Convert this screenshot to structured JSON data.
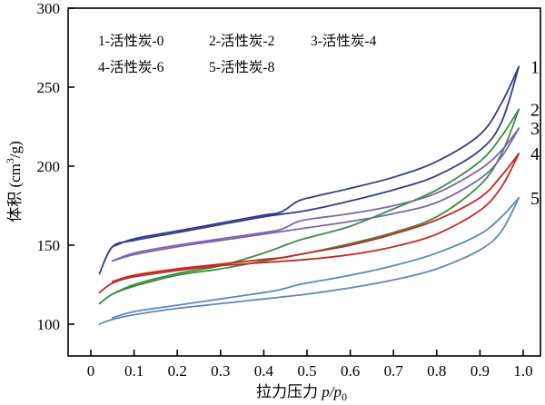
{
  "figure": {
    "background": "#ffffff",
    "axis_color": "#000000"
  },
  "chart_data": {
    "type": "line",
    "title": "",
    "xlabel": {
      "text": "拉力压力 ",
      "math": "p/p",
      "sub": "0"
    },
    "ylabel": {
      "pre": "体积 (cm",
      "sup": "3",
      "post": "/g)"
    },
    "xlim": [
      -0.052,
      1.04
    ],
    "ylim": [
      80,
      300
    ],
    "grid": false,
    "legend_position": "top-left-inside",
    "x_ticks": [
      "0",
      "0.1",
      "0.2",
      "0.3",
      "0.4",
      "0.5",
      "0.6",
      "0.7",
      "0.8",
      "0.9",
      "1.0"
    ],
    "x_tick_values": [
      0,
      0.1,
      0.2,
      0.3,
      0.4,
      0.5,
      0.6,
      0.7,
      0.8,
      0.9,
      1.0
    ],
    "y_ticks": [
      "100",
      "150",
      "200",
      "250",
      "300"
    ],
    "y_tick_values": [
      100,
      150,
      200,
      250,
      300
    ],
    "series": [
      {
        "curve_label": "1",
        "name": "活性炭-0",
        "legend_label": "1-活性炭-0",
        "color": "#313c8c",
        "adsorption": [
          [
            0.02,
            132
          ],
          [
            0.05,
            149
          ],
          [
            0.1,
            153
          ],
          [
            0.2,
            158
          ],
          [
            0.3,
            163
          ],
          [
            0.4,
            168
          ],
          [
            0.5,
            172
          ],
          [
            0.6,
            178
          ],
          [
            0.7,
            185
          ],
          [
            0.8,
            194
          ],
          [
            0.9,
            210
          ],
          [
            0.95,
            228
          ],
          [
            0.99,
            263
          ]
        ],
        "desorption": [
          [
            0.99,
            263
          ],
          [
            0.95,
            240
          ],
          [
            0.9,
            220
          ],
          [
            0.8,
            203
          ],
          [
            0.7,
            193
          ],
          [
            0.6,
            186
          ],
          [
            0.52,
            181
          ],
          [
            0.48,
            178
          ],
          [
            0.44,
            171
          ],
          [
            0.4,
            169
          ],
          [
            0.3,
            164
          ],
          [
            0.2,
            159
          ],
          [
            0.1,
            154
          ],
          [
            0.05,
            149
          ]
        ]
      },
      {
        "curve_label": "2",
        "name": "活性炭-2",
        "legend_label": "2-活性炭-2",
        "color": "#3a8c3f",
        "adsorption": [
          [
            0.02,
            113
          ],
          [
            0.05,
            119
          ],
          [
            0.1,
            124
          ],
          [
            0.2,
            131
          ],
          [
            0.3,
            135
          ],
          [
            0.4,
            140
          ],
          [
            0.5,
            145
          ],
          [
            0.6,
            151
          ],
          [
            0.7,
            158
          ],
          [
            0.8,
            168
          ],
          [
            0.9,
            188
          ],
          [
            0.95,
            208
          ],
          [
            0.99,
            236
          ]
        ],
        "desorption": [
          [
            0.99,
            236
          ],
          [
            0.95,
            219
          ],
          [
            0.9,
            203
          ],
          [
            0.8,
            185
          ],
          [
            0.7,
            173
          ],
          [
            0.6,
            162
          ],
          [
            0.52,
            156
          ],
          [
            0.48,
            153
          ],
          [
            0.44,
            149
          ],
          [
            0.4,
            145
          ],
          [
            0.3,
            137
          ],
          [
            0.2,
            132
          ],
          [
            0.1,
            125
          ],
          [
            0.05,
            119
          ]
        ]
      },
      {
        "curve_label": "3",
        "name": "活性炭-4",
        "legend_label": "3-活性炭-4",
        "color": "#7d64ae",
        "adsorption": [
          [
            0.05,
            140
          ],
          [
            0.1,
            144
          ],
          [
            0.2,
            149
          ],
          [
            0.3,
            153
          ],
          [
            0.4,
            157
          ],
          [
            0.5,
            161
          ],
          [
            0.6,
            165
          ],
          [
            0.7,
            170
          ],
          [
            0.8,
            177
          ],
          [
            0.9,
            192
          ],
          [
            0.95,
            206
          ],
          [
            0.99,
            224
          ]
        ],
        "desorption": [
          [
            0.99,
            224
          ],
          [
            0.95,
            210
          ],
          [
            0.9,
            198
          ],
          [
            0.8,
            183
          ],
          [
            0.7,
            175
          ],
          [
            0.6,
            170
          ],
          [
            0.52,
            167
          ],
          [
            0.48,
            165
          ],
          [
            0.44,
            160
          ],
          [
            0.4,
            158
          ],
          [
            0.3,
            154
          ],
          [
            0.2,
            150
          ],
          [
            0.1,
            145
          ],
          [
            0.05,
            140
          ]
        ]
      },
      {
        "curve_label": "4",
        "name": "活性炭-6",
        "legend_label": "4-活性炭-6",
        "color": "#c52622",
        "adsorption": [
          [
            0.02,
            120
          ],
          [
            0.05,
            126
          ],
          [
            0.1,
            130
          ],
          [
            0.2,
            134
          ],
          [
            0.3,
            137
          ],
          [
            0.4,
            139
          ],
          [
            0.5,
            141
          ],
          [
            0.6,
            144
          ],
          [
            0.7,
            149
          ],
          [
            0.8,
            157
          ],
          [
            0.9,
            172
          ],
          [
            0.95,
            187
          ],
          [
            0.99,
            208
          ]
        ],
        "desorption": [
          [
            0.99,
            208
          ],
          [
            0.95,
            194
          ],
          [
            0.9,
            180
          ],
          [
            0.8,
            166
          ],
          [
            0.7,
            157
          ],
          [
            0.6,
            150
          ],
          [
            0.52,
            146
          ],
          [
            0.48,
            144
          ],
          [
            0.44,
            142
          ],
          [
            0.4,
            141
          ],
          [
            0.3,
            138
          ],
          [
            0.2,
            135
          ],
          [
            0.1,
            131
          ],
          [
            0.05,
            127
          ]
        ]
      },
      {
        "curve_label": "5",
        "name": "活性炭-8",
        "legend_label": "5-活性炭-8",
        "color": "#5d87c1",
        "adsorption": [
          [
            0.02,
            100
          ],
          [
            0.05,
            103
          ],
          [
            0.1,
            106
          ],
          [
            0.2,
            110
          ],
          [
            0.3,
            113
          ],
          [
            0.4,
            116
          ],
          [
            0.5,
            119
          ],
          [
            0.6,
            123
          ],
          [
            0.7,
            128
          ],
          [
            0.8,
            135
          ],
          [
            0.9,
            147
          ],
          [
            0.95,
            159
          ],
          [
            0.99,
            180
          ]
        ],
        "desorption": [
          [
            0.99,
            180
          ],
          [
            0.95,
            168
          ],
          [
            0.9,
            157
          ],
          [
            0.8,
            145
          ],
          [
            0.7,
            137
          ],
          [
            0.6,
            131
          ],
          [
            0.52,
            127
          ],
          [
            0.48,
            125
          ],
          [
            0.44,
            122
          ],
          [
            0.4,
            120
          ],
          [
            0.3,
            116
          ],
          [
            0.2,
            112
          ],
          [
            0.1,
            108
          ],
          [
            0.05,
            104
          ]
        ]
      }
    ]
  }
}
